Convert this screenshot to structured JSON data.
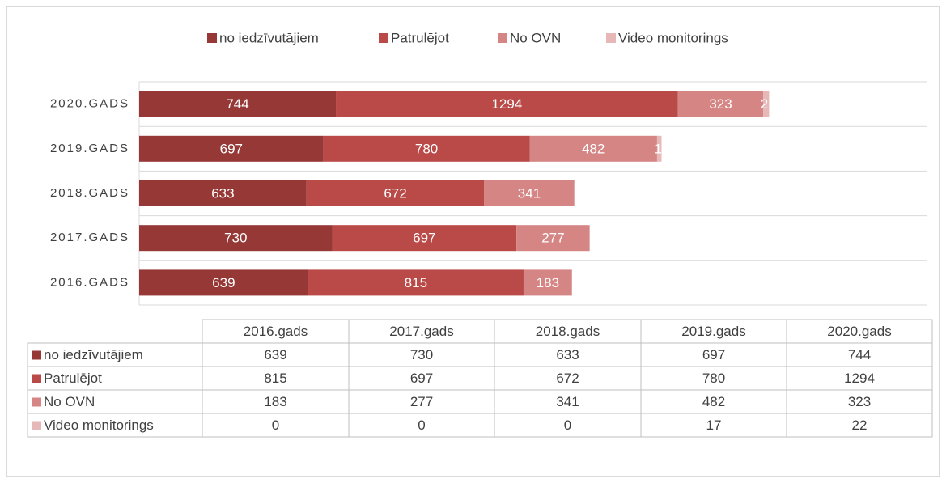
{
  "chart_data": {
    "type": "stacked-barh",
    "categories": [
      "2016.gads",
      "2017.gads",
      "2018.gads",
      "2019.gads",
      "2020.gads"
    ],
    "series": [
      {
        "name": "no iedzīvutājiem",
        "color": "#953836",
        "values": [
          639,
          730,
          633,
          697,
          744
        ]
      },
      {
        "name": "Patrulējot",
        "color": "#b94a48",
        "values": [
          815,
          697,
          672,
          780,
          1294
        ]
      },
      {
        "name": "No OVN",
        "color": "#d48584",
        "values": [
          183,
          277,
          341,
          482,
          323
        ]
      },
      {
        "name": "Video monitorings",
        "color": "#e6b9b8",
        "values": [
          0,
          0,
          0,
          17,
          22
        ]
      }
    ],
    "xlim": [
      0,
      3000
    ],
    "legend": "top",
    "data_table": true
  }
}
